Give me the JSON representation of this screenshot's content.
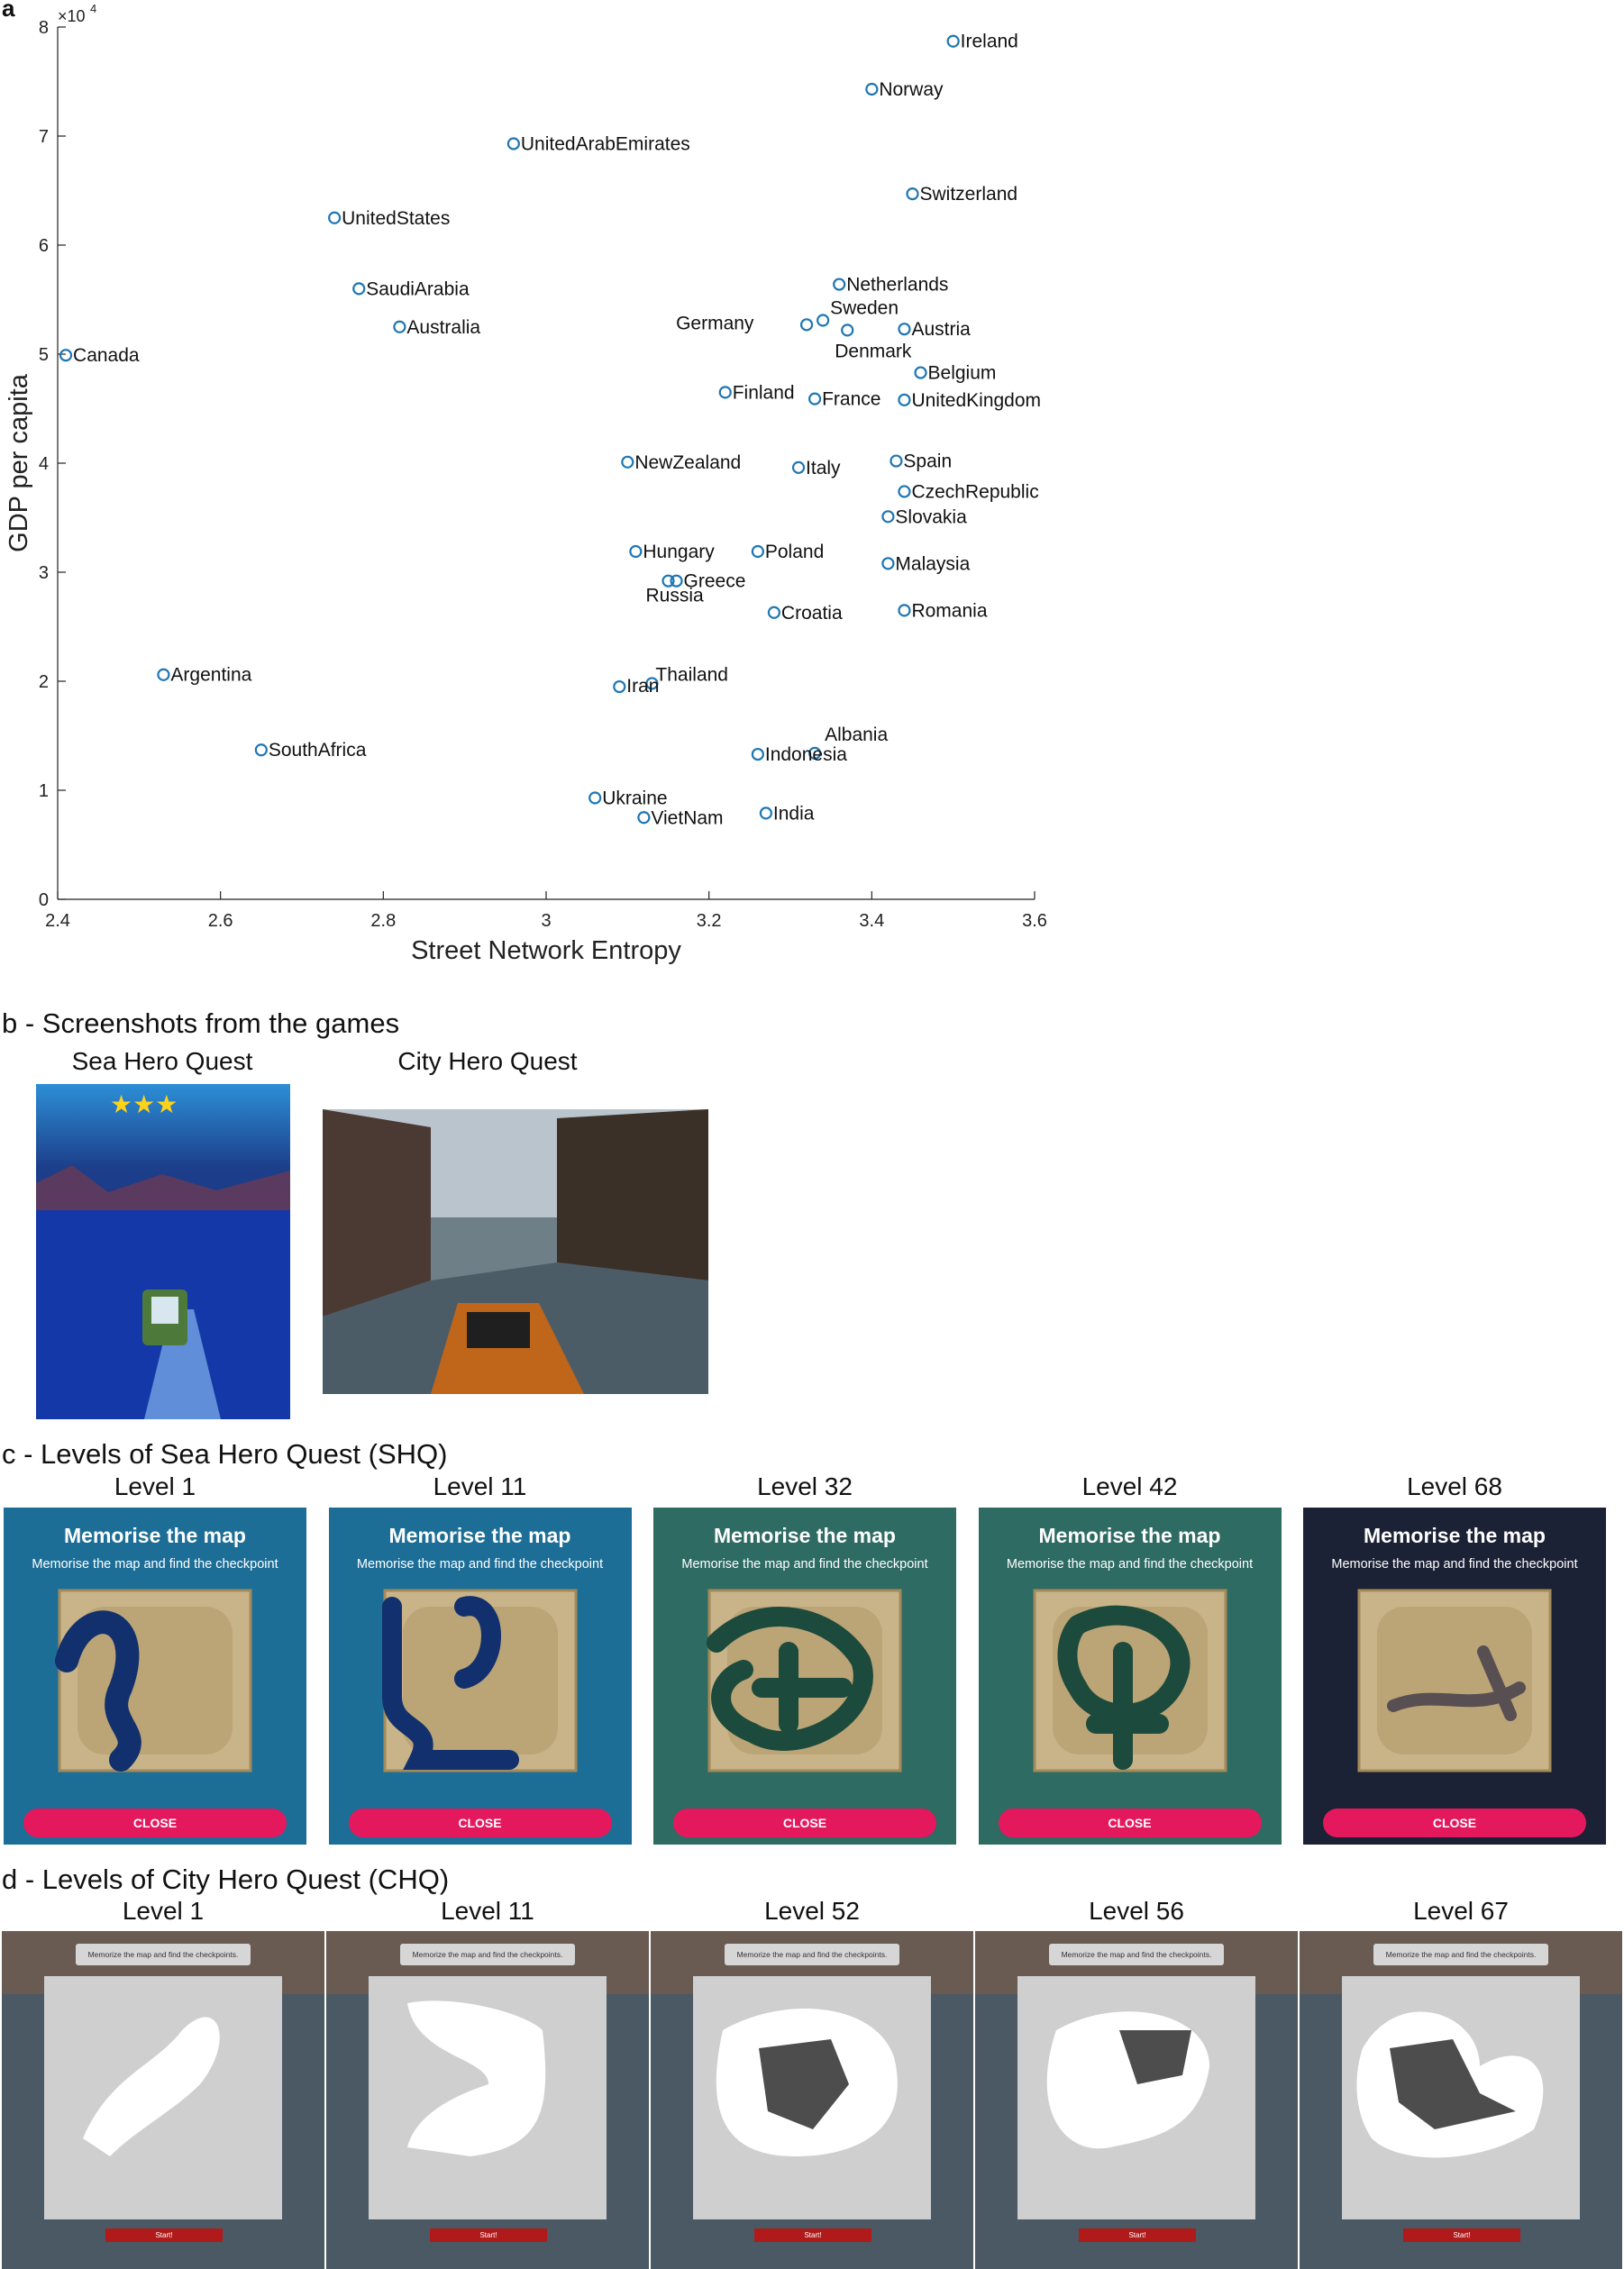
{
  "labels": {
    "panel_a": "a",
    "panel_b": "b - Screenshots from the games",
    "panel_c": "c - Levels of Sea Hero Quest (SHQ)",
    "panel_d": "d - Levels of City Hero Quest (CHQ)",
    "game_sea": "Sea Hero Quest",
    "game_city": "City Hero Quest"
  },
  "chart_data": {
    "type": "scatter",
    "title": "",
    "xlabel": "Street Network Entropy",
    "ylabel": "GDP per capita",
    "exponent": "×10",
    "exponent_power": "4",
    "xlim": [
      2.4,
      3.6
    ],
    "ylim": [
      0,
      8
    ],
    "xticks": [
      "2.4",
      "2.6",
      "2.8",
      "3",
      "3.2",
      "3.4",
      "3.6"
    ],
    "yticks": [
      "0",
      "1",
      "2",
      "3",
      "4",
      "5",
      "6",
      "7",
      "8"
    ],
    "grid": false,
    "marker_color": "#1f77b4",
    "points": [
      {
        "name": "Ireland",
        "x": 3.5,
        "y": 7.87
      },
      {
        "name": "Norway",
        "x": 3.4,
        "y": 7.43
      },
      {
        "name": "UnitedArabEmirates",
        "x": 2.96,
        "y": 6.93
      },
      {
        "name": "Switzerland",
        "x": 3.45,
        "y": 6.47
      },
      {
        "name": "UnitedStates",
        "x": 2.74,
        "y": 6.25
      },
      {
        "name": "SaudiArabia",
        "x": 2.77,
        "y": 5.6
      },
      {
        "name": "Netherlands",
        "x": 3.36,
        "y": 5.64
      },
      {
        "name": "Sweden",
        "x": 3.34,
        "y": 5.31
      },
      {
        "name": "Germany",
        "x": 3.32,
        "y": 5.27
      },
      {
        "name": "Denmark",
        "x": 3.37,
        "y": 5.22
      },
      {
        "name": "Austria",
        "x": 3.44,
        "y": 5.23
      },
      {
        "name": "Australia",
        "x": 2.82,
        "y": 5.25
      },
      {
        "name": "Canada",
        "x": 2.41,
        "y": 4.99
      },
      {
        "name": "Belgium",
        "x": 3.46,
        "y": 4.83
      },
      {
        "name": "Finland",
        "x": 3.22,
        "y": 4.65
      },
      {
        "name": "France",
        "x": 3.33,
        "y": 4.59
      },
      {
        "name": "UnitedKingdom",
        "x": 3.44,
        "y": 4.58
      },
      {
        "name": "NewZealand",
        "x": 3.1,
        "y": 4.01
      },
      {
        "name": "Italy",
        "x": 3.31,
        "y": 3.96
      },
      {
        "name": "Spain",
        "x": 3.43,
        "y": 4.02
      },
      {
        "name": "CzechRepublic",
        "x": 3.44,
        "y": 3.74
      },
      {
        "name": "Slovakia",
        "x": 3.42,
        "y": 3.51
      },
      {
        "name": "Hungary",
        "x": 3.11,
        "y": 3.19
      },
      {
        "name": "Poland",
        "x": 3.26,
        "y": 3.19
      },
      {
        "name": "Malaysia",
        "x": 3.42,
        "y": 3.08
      },
      {
        "name": "Russia",
        "x": 3.15,
        "y": 2.92
      },
      {
        "name": "Greece",
        "x": 3.16,
        "y": 2.92
      },
      {
        "name": "Croatia",
        "x": 3.28,
        "y": 2.63
      },
      {
        "name": "Romania",
        "x": 3.44,
        "y": 2.65
      },
      {
        "name": "Argentina",
        "x": 2.53,
        "y": 2.06
      },
      {
        "name": "Thailand",
        "x": 3.13,
        "y": 1.98
      },
      {
        "name": "Iran",
        "x": 3.09,
        "y": 1.95
      },
      {
        "name": "SouthAfrica",
        "x": 2.65,
        "y": 1.37
      },
      {
        "name": "Albania",
        "x": 3.33,
        "y": 1.34
      },
      {
        "name": "Indonesia",
        "x": 3.26,
        "y": 1.33
      },
      {
        "name": "Ukraine",
        "x": 3.06,
        "y": 0.93
      },
      {
        "name": "VietNam",
        "x": 3.12,
        "y": 0.75
      },
      {
        "name": "India",
        "x": 3.27,
        "y": 0.79
      }
    ]
  },
  "shq": {
    "heading": "Memorise the map",
    "subtitle": "Memorise the map and find the checkpoint",
    "close_label": "CLOSE",
    "levels": [
      "Level 1",
      "Level 11",
      "Level 32",
      "Level 42",
      "Level 68"
    ],
    "colors": [
      "#1d6e97",
      "#1d6e97",
      "#2e6b63",
      "#2e6b63",
      "#1c2235"
    ]
  },
  "chq": {
    "note": "Memorize the map and find the checkpoints.",
    "start_label": "Start!",
    "levels": [
      "Level 1",
      "Level 11",
      "Level 52",
      "Level 56",
      "Level 67"
    ]
  }
}
